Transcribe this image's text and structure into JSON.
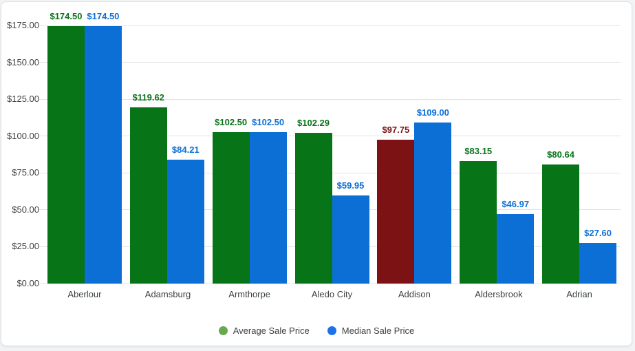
{
  "chart_data": {
    "type": "bar",
    "title": "",
    "xlabel": "",
    "ylabel": "",
    "categories": [
      "Aberlour",
      "Adamsburg",
      "Armthorpe",
      "Aledo City",
      "Addison",
      "Aldersbrook",
      "Adrian"
    ],
    "series": [
      {
        "name": "Average Sale Price",
        "color": "#087418",
        "legend_color": "#6aa84f",
        "values": [
          174.5,
          119.62,
          102.5,
          102.29,
          97.75,
          83.15,
          80.64
        ],
        "labels": [
          "$174.50",
          "$119.62",
          "$102.50",
          "$102.29",
          "$97.75",
          "$83.15",
          "$80.64"
        ]
      },
      {
        "name": "Median Sale Price",
        "color": "#0b6fd6",
        "legend_color": "#1a73e8",
        "values": [
          174.5,
          84.21,
          102.5,
          59.95,
          109.0,
          46.97,
          27.6
        ],
        "labels": [
          "$174.50",
          "$84.21",
          "$102.50",
          "$59.95",
          "$109.00",
          "$46.97",
          "$27.60"
        ]
      }
    ],
    "highlight": {
      "series": 0,
      "index": 4,
      "color": "#7d1214",
      "category": "Addison"
    },
    "ylim": [
      0,
      175
    ],
    "yticks": [
      0,
      25,
      50,
      75,
      100,
      125,
      150,
      175
    ],
    "ytick_labels": [
      "$0.00",
      "$25.00",
      "$50.00",
      "$75.00",
      "$100.00",
      "$125.00",
      "$150.00",
      "$175.00"
    ],
    "grid": true,
    "legend_position": "bottom"
  },
  "colors": {
    "card_background": "#ffffff",
    "page_background": "#f1f3f4",
    "grid": "#e3e3e3",
    "axis_text": "#424242",
    "category_text": "#3c4043"
  }
}
